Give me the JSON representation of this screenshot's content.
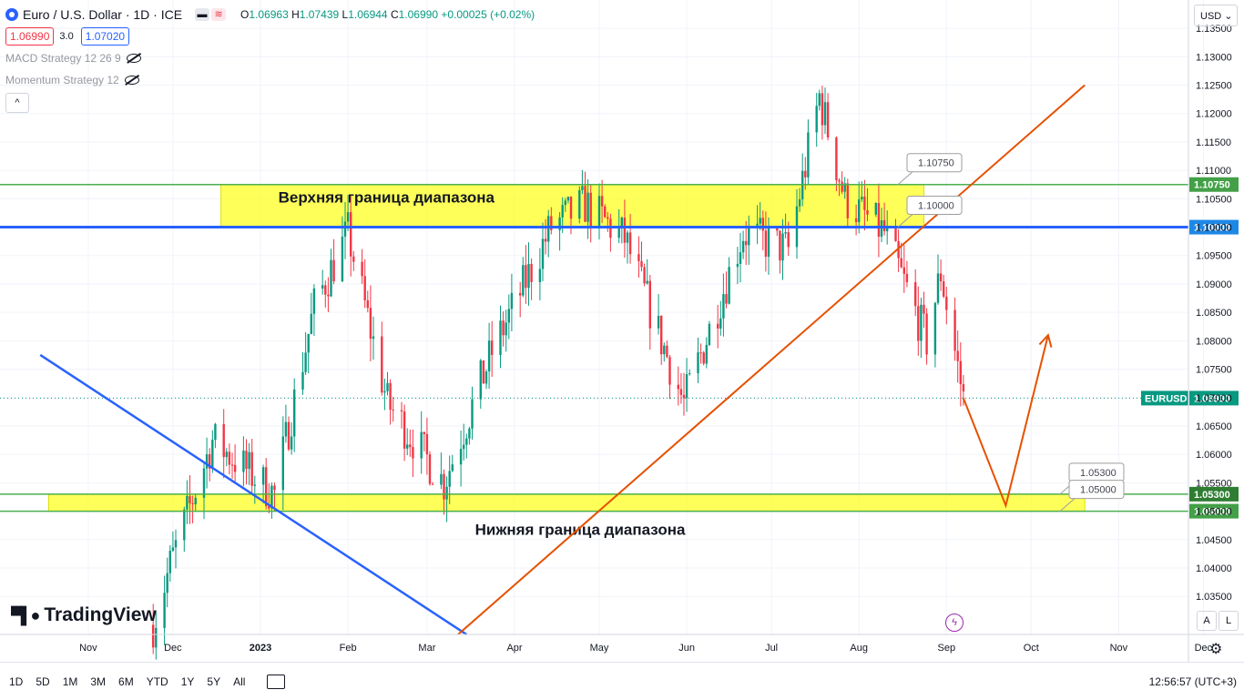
{
  "header": {
    "symbol_title": "Euro / U.S. Dollar · 1D · ICE",
    "ohlc": {
      "o_label": "O",
      "o": "1.06963",
      "h_label": "H",
      "h": "1.07439",
      "l_label": "L",
      "l": "1.06944",
      "c_label": "C",
      "c": "1.06990",
      "change": "+0.00025 (+0.02%)"
    },
    "bid": "1.06990",
    "spread": "3.0",
    "ask": "1.07020"
  },
  "indicators": [
    {
      "name": "MACD Strategy 12 26 9"
    },
    {
      "name": "Momentum Strategy 12"
    }
  ],
  "currency": "USD",
  "logo": "TradingView",
  "ranges": [
    "1D",
    "5D",
    "1M",
    "3M",
    "6M",
    "YTD",
    "1Y",
    "5Y",
    "All"
  ],
  "clock": "12:56:57 (UTC+3)",
  "scale_buttons": {
    "auto": "A",
    "log": "L"
  },
  "colors": {
    "bull": "#089981",
    "bear": "#f23645",
    "zone": "#ffff00",
    "blue": "#2962ff",
    "orange": "#e65100",
    "green": "#4caf50"
  },
  "chart_data": {
    "type": "candlestick",
    "symbol": "EURUSD",
    "ylim": [
      1.0283,
      1.1355
    ],
    "y_ticks": [
      "1.03500",
      "1.04000",
      "1.04500",
      "1.05000",
      "1.05500",
      "1.06000",
      "1.06500",
      "1.07000",
      "1.07500",
      "1.08000",
      "1.08500",
      "1.09000",
      "1.09500",
      "1.10000",
      "1.10500",
      "1.11000",
      "1.11500",
      "1.12000",
      "1.12500",
      "1.13000",
      "1.13500"
    ],
    "x_ticks": [
      "Nov",
      "Dec",
      "2023",
      "Feb",
      "Mar",
      "Apr",
      "May",
      "Jun",
      "Jul",
      "Aug",
      "Sep",
      "Oct",
      "Nov",
      "Dec"
    ],
    "last_price": {
      "label": "EURUSD",
      "value": "1.06990"
    },
    "levels": [
      {
        "value": "1.10750",
        "color": "#4caf50"
      },
      {
        "value": "1.10000",
        "color": "#2962ff"
      },
      {
        "value": "1.05300",
        "color": "#4caf50"
      },
      {
        "value": "1.05000",
        "color": "#4caf50"
      }
    ],
    "zones": [
      {
        "label": "Верхняя граница диапазона",
        "from": 1.1,
        "to": 1.1075,
        "start": "2022-12-18",
        "end": "2023-08-24"
      },
      {
        "label": "Нижняя граница диапазона",
        "from": 1.05,
        "to": 1.053,
        "start": "2022-10-18",
        "end": "2023-10-20"
      }
    ],
    "callouts": [
      {
        "text": "1.10750"
      },
      {
        "text": "1.10000"
      },
      {
        "text": "1.05300"
      },
      {
        "text": "1.05000"
      }
    ],
    "trendlines": [
      {
        "name": "descending",
        "color": "#2962ff",
        "points": [
          [
            "2022-10-15",
            1.0775
          ],
          [
            "2023-03-15",
            1.0283
          ]
        ]
      },
      {
        "name": "ascending",
        "color": "#e65100",
        "points": [
          [
            "2023-03-12",
            1.0283
          ],
          [
            "2023-10-20",
            1.125
          ]
        ]
      }
    ],
    "projection": [
      [
        "2023-09-07",
        1.0699
      ],
      [
        "2023-09-22",
        1.051
      ],
      [
        "2023-10-07",
        1.081
      ]
    ],
    "anchors": [
      {
        "date": "2022-11-30",
        "close": 1.0405
      },
      {
        "date": "2022-12-15",
        "close": 1.0625
      },
      {
        "date": "2023-01-06",
        "close": 1.053
      },
      {
        "date": "2023-01-20",
        "close": 1.086
      },
      {
        "date": "2023-02-01",
        "close": 1.099
      },
      {
        "date": "2023-02-15",
        "close": 1.069
      },
      {
        "date": "2023-03-07",
        "close": 1.055
      },
      {
        "date": "2023-03-24",
        "close": 1.078
      },
      {
        "date": "2023-04-14",
        "close": 1.1
      },
      {
        "date": "2023-04-26",
        "close": 1.104
      },
      {
        "date": "2023-05-10",
        "close": 1.098
      },
      {
        "date": "2023-05-31",
        "close": 1.069
      },
      {
        "date": "2023-06-21",
        "close": 1.099
      },
      {
        "date": "2023-07-07",
        "close": 1.096
      },
      {
        "date": "2023-07-18",
        "close": 1.123
      },
      {
        "date": "2023-07-27",
        "close": 1.105
      },
      {
        "date": "2023-08-10",
        "close": 1.099
      },
      {
        "date": "2023-08-25",
        "close": 1.08
      },
      {
        "date": "2023-08-30",
        "close": 1.092
      },
      {
        "date": "2023-09-07",
        "close": 1.0699
      }
    ]
  }
}
